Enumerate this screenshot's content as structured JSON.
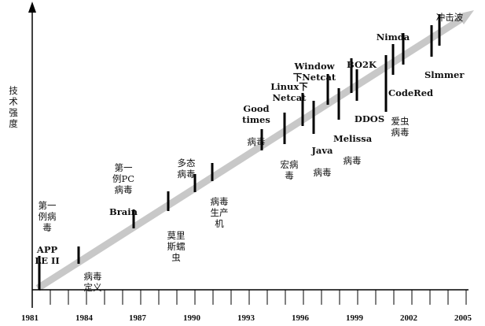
{
  "y_axis_label": "技术强度",
  "x_ticks": [
    "1981",
    "1984",
    "1987",
    "1990",
    "1993",
    "1996",
    "1999",
    "2002",
    "2005"
  ],
  "events": [
    {
      "id": "first-virus-apple2",
      "text": "第一\n例病\n毒",
      "bold_text": "APP\nLE II"
    },
    {
      "id": "virus-definition",
      "text": "病毒\n定义"
    },
    {
      "id": "first-pc-virus-brain",
      "text": "第一\n例PC\n病毒",
      "bold_text": "Brain"
    },
    {
      "id": "morris-worm",
      "text": "莫里\n斯蠕\n虫"
    },
    {
      "id": "polymorphic-virus",
      "text": "多态\n病毒"
    },
    {
      "id": "virus-generator",
      "text": "病毒\n生产\n机"
    },
    {
      "id": "good-times-virus",
      "bold_text": "Good\ntimes",
      "text": "病毒"
    },
    {
      "id": "macro-virus",
      "text": "宏病\n毒"
    },
    {
      "id": "linux-netcat",
      "bold_text": "Linux下\nNetcat"
    },
    {
      "id": "java-virus",
      "bold_text": "Java",
      "text": "病毒"
    },
    {
      "id": "windows-netcat",
      "bold_text": "Window\n下Netcat"
    },
    {
      "id": "melissa-virus",
      "bold_text": "Melissa",
      "text": "病毒"
    },
    {
      "id": "bo2k",
      "bold_text": "BO2K"
    },
    {
      "id": "ddos",
      "bold_text": "DDOS"
    },
    {
      "id": "love-bug-virus",
      "text": "爱虫\n病毒"
    },
    {
      "id": "codered",
      "bold_text": "CodeRed"
    },
    {
      "id": "nimda",
      "bold_text": "Nimda"
    },
    {
      "id": "slammer",
      "bold_text": "Slmmer"
    },
    {
      "id": "shockwave",
      "text": "冲击波"
    }
  ],
  "colors": {
    "trend_arrow": "#c8c8c8",
    "axes": "#000000",
    "markers": "#000000"
  }
}
